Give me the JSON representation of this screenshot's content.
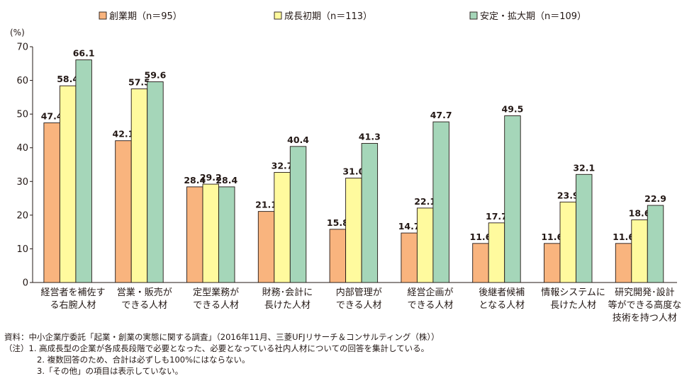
{
  "chart_data": {
    "type": "bar",
    "y_unit": "(%)",
    "ylim": [
      0,
      70
    ],
    "yticks": [
      0,
      10,
      20,
      30,
      40,
      50,
      60,
      70
    ],
    "legend_position": "top",
    "categories": [
      [
        "経営者を補佐す",
        "る右腕人材"
      ],
      [
        "営業・販売が",
        "できる人材"
      ],
      [
        "定型業務が",
        "できる人材"
      ],
      [
        "財務･会計に",
        "長けた人材"
      ],
      [
        "内部管理が",
        "できる人材"
      ],
      [
        "経営企画が",
        "できる人材"
      ],
      [
        "後継者候補",
        "となる人材"
      ],
      [
        "情報システムに",
        "長けた人材"
      ],
      [
        "研究開発･設計",
        "等ができる高度な",
        "技術を持つ人材"
      ]
    ],
    "series": [
      {
        "name": "創業期（n＝95）",
        "color": "#F9B47E",
        "values": [
          47.4,
          42.1,
          28.4,
          21.1,
          15.8,
          14.7,
          11.6,
          11.6,
          11.6
        ],
        "labels": [
          "47.4",
          "42.1",
          "28.4",
          "21.1",
          "15.8",
          "14.7",
          "11.6",
          "11.6",
          "11.6"
        ]
      },
      {
        "name": "成長初期（n＝113）",
        "color": "#FFFA9E",
        "values": [
          58.4,
          57.5,
          29.2,
          32.7,
          31.0,
          22.1,
          17.7,
          23.9,
          18.6
        ],
        "labels": [
          "58.4",
          "57.5",
          "29.2",
          "32.7",
          "31.0",
          "22.1",
          "17.7",
          "23.9",
          "18.6"
        ]
      },
      {
        "name": "安定・拡大期（n＝109）",
        "color": "#A5D6B9",
        "values": [
          66.1,
          59.6,
          28.4,
          40.4,
          41.3,
          47.7,
          49.5,
          32.1,
          22.9
        ],
        "labels": [
          "66.1",
          "59.6",
          "28.4",
          "40.4",
          "41.3",
          "47.7",
          "49.5",
          "32.1",
          "22.9"
        ]
      }
    ]
  },
  "notes": {
    "source": "資料：中小企業庁委託「起業・創業の実態に関する調査」（2016年11月、三菱UFJリサーチ＆コンサルティング（株））",
    "note1": "（注）1. 高成長型の企業が各成長段階で必要となった、必要となっている社内人材についての回答を集計している。",
    "note2": "2. 複数回答のため、合計は必ずしも100%にはならない。",
    "note3": "3.「その他」の項目は表示していない。"
  }
}
